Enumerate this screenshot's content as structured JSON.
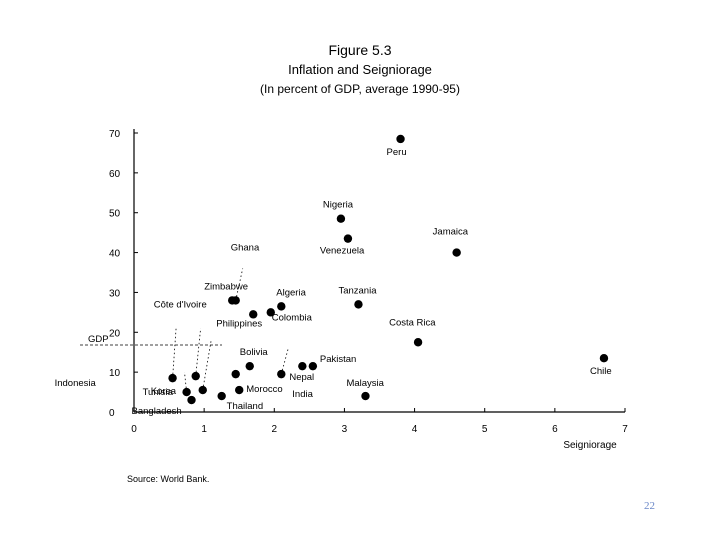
{
  "figure": {
    "number": "Figure 5.3",
    "title": "Inflation and Seigniorage",
    "subtitle": "(In percent of GDP, average 1990-95)",
    "source": "Source: World Bank.",
    "page_number": "22"
  },
  "chart_data": {
    "type": "scatter",
    "title": "Inflation and Seigniorage",
    "subtitle": "(In percent of GDP, average 1990-95)",
    "xlabel": "Seigniorage",
    "ylabel": "",
    "xlim": [
      0,
      7
    ],
    "ylim": [
      0,
      70
    ],
    "xticks": [
      0,
      1,
      2,
      3,
      4,
      5,
      6,
      7
    ],
    "yticks": [
      0,
      10,
      20,
      30,
      40,
      50,
      60,
      70
    ],
    "points": [
      {
        "label": "Peru",
        "x": 3.8,
        "y": 68.5
      },
      {
        "label": "Nigeria",
        "x": 2.95,
        "y": 48.5
      },
      {
        "label": "Venezuela",
        "x": 3.05,
        "y": 43.5
      },
      {
        "label": "Jamaica",
        "x": 4.6,
        "y": 40
      },
      {
        "label": "Ghana",
        "x": null,
        "y": null
      },
      {
        "label": "Zimbabwe",
        "x": 1.4,
        "y": 28
      },
      {
        "label": "Côte d'Ivoire",
        "x": null,
        "y": null
      },
      {
        "label": "Algeria",
        "x": 2.1,
        "y": 26.5
      },
      {
        "label": "Tanzania",
        "x": 3.2,
        "y": 27
      },
      {
        "label": "Indonesia",
        "x": null,
        "y": null
      },
      {
        "label": "Philippines",
        "x": 1.7,
        "y": 24.5
      },
      {
        "label": "Colombia",
        "x": 1.95,
        "y": 25
      },
      {
        "label": "India",
        "x": null,
        "y": null
      },
      {
        "label": "Costa Rica",
        "x": 4.05,
        "y": 17.5
      },
      {
        "label": "Korea",
        "x": null,
        "y": null
      },
      {
        "label": "Bolivia",
        "x": 1.65,
        "y": 11.5
      },
      {
        "label": "Pakistan",
        "x": 2.55,
        "y": 11.5
      },
      {
        "label": "Chile",
        "x": 6.7,
        "y": 13.5
      },
      {
        "label": "Nepal",
        "x": 2.4,
        "y": 11.5
      },
      {
        "label": "Malaysia",
        "x": 3.3,
        "y": 4
      },
      {
        "label": "Tunisia",
        "x": 0.75,
        "y": 5
      },
      {
        "label": "Morocco",
        "x": 1.5,
        "y": 5.5
      },
      {
        "label": "Bangladesh",
        "x": 0.82,
        "y": 3
      },
      {
        "label": "Thailand",
        "x": 1.25,
        "y": 4
      }
    ],
    "unlabeled_points": [
      {
        "x": 0.55,
        "y": 8.5
      },
      {
        "x": 0.88,
        "y": 9
      },
      {
        "x": 0.98,
        "y": 5.5
      },
      {
        "x": 1.45,
        "y": 9.5
      },
      {
        "x": 2.1,
        "y": 9.5
      },
      {
        "x": 1.45,
        "y": 28
      }
    ],
    "annotation": "GDP"
  }
}
